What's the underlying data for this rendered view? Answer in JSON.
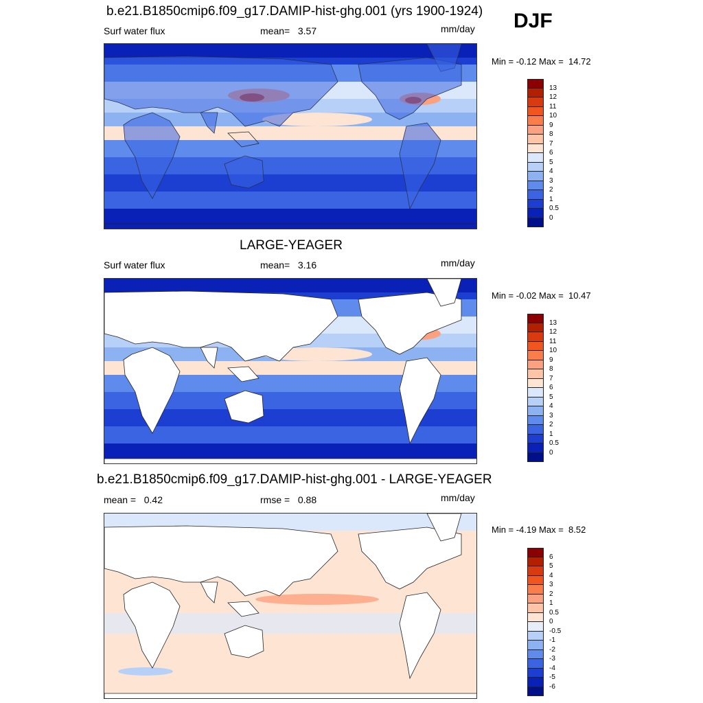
{
  "season": "DJF",
  "panels": [
    {
      "title": "b.e21.B1850cmip6.f09_g17.DAMIP-hist-ghg.001 (yrs 1900-1924)",
      "left_label": "Surf water flux",
      "stat_label": "mean=",
      "stat_value": "3.57",
      "units": "mm/day",
      "minmax_label": "Min =",
      "min_value": "-0.12",
      "max_label": "Max =",
      "max_value": "14.72",
      "land_filled": true,
      "colorbar_levels": [
        "13",
        "12",
        "11",
        "10",
        "9",
        "8",
        "7",
        "6",
        "5",
        "4",
        "3",
        "2",
        "1",
        "0.5",
        "0"
      ],
      "colorbar_colors": [
        "#8b0000",
        "#b22000",
        "#d93a10",
        "#f0561e",
        "#fa7e4c",
        "#fca180",
        "#fdc4a8",
        "#fde4d3",
        "#dbe8fb",
        "#b7d0f7",
        "#8db2f2",
        "#5f8cec",
        "#3a64e2",
        "#1c3fd2",
        "#0a21b7",
        "#00108a"
      ]
    },
    {
      "title": "LARGE-YEAGER",
      "left_label": "Surf water flux",
      "stat_label": "mean=",
      "stat_value": "3.16",
      "units": "mm/day",
      "minmax_label": "Min =",
      "min_value": "-0.02",
      "max_label": "Max =",
      "max_value": "10.47",
      "land_filled": false,
      "colorbar_levels": [
        "13",
        "12",
        "11",
        "10",
        "9",
        "8",
        "7",
        "6",
        "5",
        "4",
        "3",
        "2",
        "1",
        "0.5",
        "0"
      ],
      "colorbar_colors": [
        "#8b0000",
        "#b22000",
        "#d93a10",
        "#f0561e",
        "#fa7e4c",
        "#fca180",
        "#fdc4a8",
        "#fde4d3",
        "#dbe8fb",
        "#b7d0f7",
        "#8db2f2",
        "#5f8cec",
        "#3a64e2",
        "#1c3fd2",
        "#0a21b7",
        "#00108a"
      ]
    },
    {
      "title": "b.e21.B1850cmip6.f09_g17.DAMIP-hist-ghg.001 - LARGE-YEAGER",
      "left_label": "mean =   0.42",
      "stat_label": "rmse =",
      "stat_value": "0.88",
      "units": "mm/day",
      "minmax_label": "Min =",
      "min_value": "-4.19",
      "max_label": "Max =",
      "max_value": "8.52",
      "land_filled": false,
      "colorbar_levels": [
        "6",
        "5",
        "4",
        "3",
        "2",
        "1",
        "0.5",
        "0",
        "-0.5",
        "-1",
        "-2",
        "-3",
        "-4",
        "-5",
        "-6"
      ],
      "colorbar_colors": [
        "#8b0000",
        "#b22000",
        "#d93a10",
        "#f0561e",
        "#fa7e4c",
        "#fca180",
        "#fdc4a8",
        "#fde4d3",
        "#e6eefb",
        "#b7d0f7",
        "#8db2f2",
        "#5f8cec",
        "#3a64e2",
        "#1c3fd2",
        "#0a21b7",
        "#00108a"
      ]
    }
  ]
}
